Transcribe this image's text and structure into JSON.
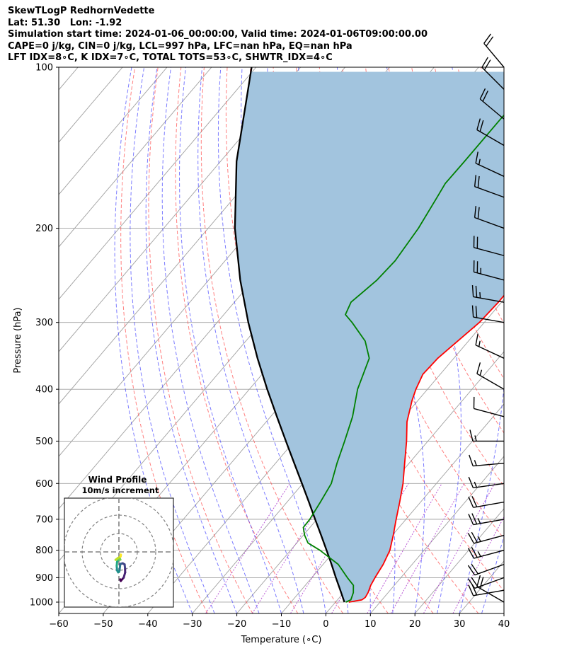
{
  "header": {
    "title": "SkewTLogP RedhornVedette",
    "location": "Lat: 51.30   Lon: -1.92",
    "times": "Simulation start time: 2024-01-06_00:00:00, Valid time: 2024-01-06T09:00:00.00",
    "indices1": "CAPE=0 j/kg, CIN=0 j/kg, LCL=997 hPa, LFC=nan hPa, EQ=nan hPa",
    "indices2": "LFT IDX=8∘C, K IDX=7∘C, TOTAL TOTS=53∘C, SHWTR_IDX=4∘C"
  },
  "chart_data": {
    "type": "line",
    "plot_kind": "skew-T log-P",
    "xlabel": "Temperature (∘C)",
    "ylabel": "Pressure (hPa)",
    "xlim": [
      -60,
      40
    ],
    "ylim": [
      1050,
      100
    ],
    "y_scale": "log",
    "grid": true,
    "x_ticks": [
      "−60",
      "−50",
      "−40",
      "−30",
      "−20",
      "−10",
      "0",
      "10",
      "20",
      "30",
      "40"
    ],
    "y_ticks": [
      "100",
      "200",
      "300",
      "400",
      "500",
      "600",
      "700",
      "800",
      "900",
      "1000"
    ],
    "colors": {
      "temperature": "#ff0000",
      "dewpoint": "#008000",
      "parcel": "#000000",
      "cape_fill": "#a2c4de",
      "dry_adiabat": "#ff5555",
      "moist_adiabat": "#4444ff",
      "mixing_ratio": "#aa33cc",
      "isotherm": "#a0a0a0"
    },
    "series": [
      {
        "key": "temperature",
        "points": [
          [
            1000,
            3
          ],
          [
            990,
            5.5
          ],
          [
            980,
            5.8
          ],
          [
            960,
            5.5
          ],
          [
            930,
            4.7
          ],
          [
            900,
            4.2
          ],
          [
            850,
            3.5
          ],
          [
            800,
            2.3
          ],
          [
            750,
            0.2
          ],
          [
            700,
            -2.2
          ],
          [
            650,
            -4.7
          ],
          [
            600,
            -7.5
          ],
          [
            550,
            -11.0
          ],
          [
            500,
            -14.8
          ],
          [
            460,
            -18.4
          ],
          [
            420,
            -21.3
          ],
          [
            400,
            -22.6
          ],
          [
            375,
            -23.9
          ],
          [
            350,
            -23.6
          ],
          [
            300,
            -21.1
          ],
          [
            275,
            -20.7
          ],
          [
            250,
            -20.7
          ],
          [
            225,
            -20.3
          ],
          [
            200,
            -19.2
          ],
          [
            175,
            -17.7
          ],
          [
            160,
            -17.5
          ],
          [
            140,
            -18.1
          ],
          [
            130,
            -18.4
          ],
          [
            120,
            -19.2
          ],
          [
            110,
            -21.0
          ],
          [
            100,
            -24.6
          ]
        ]
      },
      {
        "key": "dewpoint",
        "points": [
          [
            1000,
            2.3
          ],
          [
            990,
            3.0
          ],
          [
            960,
            2.2
          ],
          [
            930,
            0.8
          ],
          [
            900,
            -2.0
          ],
          [
            850,
            -6.6
          ],
          [
            800,
            -13.4
          ],
          [
            775,
            -17.5
          ],
          [
            750,
            -19.7
          ],
          [
            725,
            -21.5
          ],
          [
            700,
            -21.6
          ],
          [
            650,
            -22.5
          ],
          [
            600,
            -23.6
          ],
          [
            550,
            -26.2
          ],
          [
            500,
            -28.7
          ],
          [
            450,
            -31.6
          ],
          [
            400,
            -35.7
          ],
          [
            350,
            -39.0
          ],
          [
            325,
            -43.2
          ],
          [
            300,
            -49.7
          ],
          [
            290,
            -52.7
          ],
          [
            275,
            -53.8
          ],
          [
            250,
            -52.2
          ],
          [
            230,
            -51.8
          ],
          [
            200,
            -52.8
          ],
          [
            175,
            -54.5
          ],
          [
            165,
            -55.3
          ],
          [
            150,
            -55.2
          ],
          [
            125,
            -55.2
          ],
          [
            100,
            -54.5
          ]
        ]
      },
      {
        "key": "parcel",
        "points": [
          [
            1000,
            2.0
          ],
          [
            950,
            -1.2
          ],
          [
            900,
            -4.6
          ],
          [
            850,
            -8.1
          ],
          [
            800,
            -11.9
          ],
          [
            750,
            -16.0
          ],
          [
            700,
            -20.4
          ],
          [
            650,
            -25.1
          ],
          [
            600,
            -30.2
          ],
          [
            550,
            -35.8
          ],
          [
            500,
            -41.9
          ],
          [
            450,
            -48.6
          ],
          [
            400,
            -56.0
          ],
          [
            350,
            -64.1
          ],
          [
            300,
            -73.0
          ],
          [
            250,
            -82.9
          ],
          [
            200,
            -94.0
          ],
          [
            150,
            -106.4
          ],
          [
            100,
            -121.0
          ]
        ]
      }
    ],
    "winds": [
      {
        "p": 1000,
        "dir": 300,
        "kt": 20
      },
      {
        "p": 950,
        "dir": 260,
        "kt": 20
      },
      {
        "p": 900,
        "dir": 250,
        "kt": 20
      },
      {
        "p": 850,
        "dir": 250,
        "kt": 20
      },
      {
        "p": 800,
        "dir": 255,
        "kt": 25
      },
      {
        "p": 750,
        "dir": 255,
        "kt": 25
      },
      {
        "p": 700,
        "dir": 260,
        "kt": 25
      },
      {
        "p": 650,
        "dir": 260,
        "kt": 20
      },
      {
        "p": 600,
        "dir": 262,
        "kt": 15
      },
      {
        "p": 550,
        "dir": 265,
        "kt": 15
      },
      {
        "p": 500,
        "dir": 270,
        "kt": 15
      },
      {
        "p": 450,
        "dir": 285,
        "kt": 10
      },
      {
        "p": 400,
        "dir": 300,
        "kt": 15
      },
      {
        "p": 350,
        "dir": 295,
        "kt": 15
      },
      {
        "p": 300,
        "dir": 280,
        "kt": 20
      },
      {
        "p": 275,
        "dir": 280,
        "kt": 25
      },
      {
        "p": 250,
        "dir": 285,
        "kt": 25
      },
      {
        "p": 225,
        "dir": 285,
        "kt": 20
      },
      {
        "p": 200,
        "dir": 290,
        "kt": 20
      },
      {
        "p": 175,
        "dir": 290,
        "kt": 20
      },
      {
        "p": 160,
        "dir": 295,
        "kt": 15
      },
      {
        "p": 140,
        "dir": 300,
        "kt": 20
      },
      {
        "p": 125,
        "dir": 310,
        "kt": 20
      },
      {
        "p": 110,
        "dir": 315,
        "kt": 20
      },
      {
        "p": 100,
        "dir": 320,
        "kt": 20
      }
    ],
    "hodograph": {
      "title": "Wind Profile",
      "subtitle": "10m/s increment",
      "colormap": "viridis",
      "uv_ms": [
        [
          0.7,
          -14.9
        ],
        [
          1.0,
          -15.8
        ],
        [
          1.4,
          -15.3
        ],
        [
          2.6,
          -14.0
        ],
        [
          3.4,
          -11.2
        ],
        [
          3.3,
          -8.6
        ],
        [
          3.1,
          -6.8
        ],
        [
          2.1,
          -6.2
        ],
        [
          1.3,
          -6.4
        ],
        [
          0.7,
          -6.6
        ],
        [
          0.6,
          -7.8
        ],
        [
          0.4,
          -9.3
        ],
        [
          0.2,
          -10.7
        ],
        [
          -0.4,
          -11.1
        ],
        [
          -1.0,
          -10.0
        ],
        [
          -1.2,
          -7.6
        ],
        [
          -1.0,
          -5.5
        ],
        [
          -0.5,
          -4.4
        ],
        [
          0.2,
          -4.3
        ],
        [
          0.8,
          -4.2
        ],
        [
          0.5,
          -3.6
        ],
        [
          -0.9,
          -4.0
        ],
        [
          -1.8,
          -4.3
        ],
        [
          -0.5,
          -3.3
        ],
        [
          0.9,
          -2.5
        ],
        [
          1.1,
          -1.6
        ],
        [
          1.0,
          -1.4
        ]
      ]
    }
  }
}
